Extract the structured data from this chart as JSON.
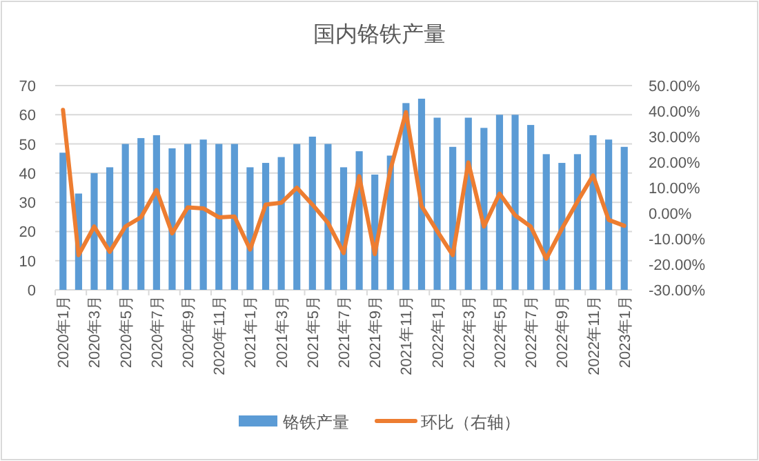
{
  "chart_data": {
    "type": "bar",
    "title": "国内铬铁产量",
    "categories": [
      "2020年1月",
      null,
      "2020年3月",
      null,
      "2020年5月",
      null,
      "2020年7月",
      null,
      "2020年9月",
      null,
      "2020年11月",
      null,
      "2021年1月",
      null,
      "2021年3月",
      null,
      "2021年5月",
      null,
      "2021年7月",
      null,
      "2021年9月",
      null,
      "2021年11月",
      null,
      "2022年1月",
      null,
      "2022年3月",
      null,
      "2022年5月",
      null,
      "2022年7月",
      null,
      "2022年9月",
      null,
      "2022年11月",
      null,
      "2023年1月"
    ],
    "series": [
      {
        "name": "铬铁产量",
        "color": "#5b9bd5",
        "values": [
          47,
          33,
          40,
          42,
          50,
          52,
          53,
          48.5,
          50,
          51.5,
          50,
          50,
          42,
          43.5,
          45.5,
          50,
          52.5,
          50,
          42,
          47.5,
          39.5,
          46,
          64,
          65.5,
          59,
          49,
          59,
          55.5,
          60,
          60,
          56.5,
          46.5,
          43.5,
          46.5,
          53,
          51.5,
          49
        ]
      },
      {
        "name": "环比（右轴）",
        "type": "line",
        "axis": "y2",
        "color": "#ed7d31",
        "values": [
          40.5,
          -16.4,
          -5.2,
          -15.1,
          -5.2,
          -1.6,
          9.1,
          -7.9,
          2.3,
          1.9,
          -1.6,
          -1.3,
          -14.2,
          3.4,
          4.1,
          10,
          3.4,
          -3.8,
          -15.6,
          14.5,
          -16,
          17,
          39.6,
          2.8,
          -7,
          -16.4,
          19.9,
          -5.2,
          7.7,
          -0.8,
          -5.2,
          -17.8,
          -6.1,
          4.6,
          14.8,
          -2.6,
          -4.9
        ]
      }
    ],
    "ylim": [
      0,
      70
    ],
    "yticks": [
      0,
      10,
      20,
      30,
      40,
      50,
      60,
      70
    ],
    "y2lim": [
      -30,
      50
    ],
    "y2ticks": [
      {
        "value": -30,
        "label": "-30.00%"
      },
      {
        "value": -20,
        "label": "-20.00%"
      },
      {
        "value": -10,
        "label": "-10.00%"
      },
      {
        "value": 0,
        "label": "0.00%"
      },
      {
        "value": 10,
        "label": "10.00%"
      },
      {
        "value": 20,
        "label": "20.00%"
      },
      {
        "value": 30,
        "label": "30.00%"
      },
      {
        "value": 40,
        "label": "40.00%"
      },
      {
        "value": 50,
        "label": "50.00%"
      }
    ],
    "grid": "y",
    "legend": "bottom",
    "marker": "none",
    "line_style": "solid"
  }
}
